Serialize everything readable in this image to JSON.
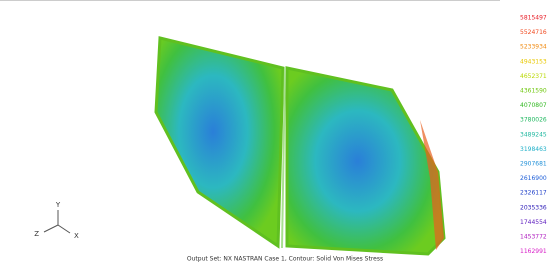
{
  "viewport": {
    "footer": "Output Set: NX NASTRAN Case 1, Contour: Solid Von Mises Stress",
    "axes": {
      "x": "X",
      "y": "Y",
      "z": "Z"
    }
  },
  "legend": [
    {
      "label": "5815497",
      "color": "#e8202a"
    },
    {
      "label": "5524716",
      "color": "#f04a20"
    },
    {
      "label": "5233934",
      "color": "#f08a10"
    },
    {
      "label": "4943153",
      "color": "#e8c800"
    },
    {
      "label": "4652371",
      "color": "#b8d800"
    },
    {
      "label": "4361590",
      "color": "#70c810"
    },
    {
      "label": "4070807",
      "color": "#30b820"
    },
    {
      "label": "3780026",
      "color": "#20b860"
    },
    {
      "label": "3489245",
      "color": "#20b8a0"
    },
    {
      "label": "3198463",
      "color": "#20b0c8"
    },
    {
      "label": "2907681",
      "color": "#2090d8"
    },
    {
      "label": "2616900",
      "color": "#2060d8"
    },
    {
      "label": "2326117",
      "color": "#2040c8"
    },
    {
      "label": "2035336",
      "color": "#3020b8"
    },
    {
      "label": "1744554",
      "color": "#6020c0"
    },
    {
      "label": "1453772",
      "color": "#b020c0"
    },
    {
      "label": "1162991",
      "color": "#d820c8"
    }
  ]
}
